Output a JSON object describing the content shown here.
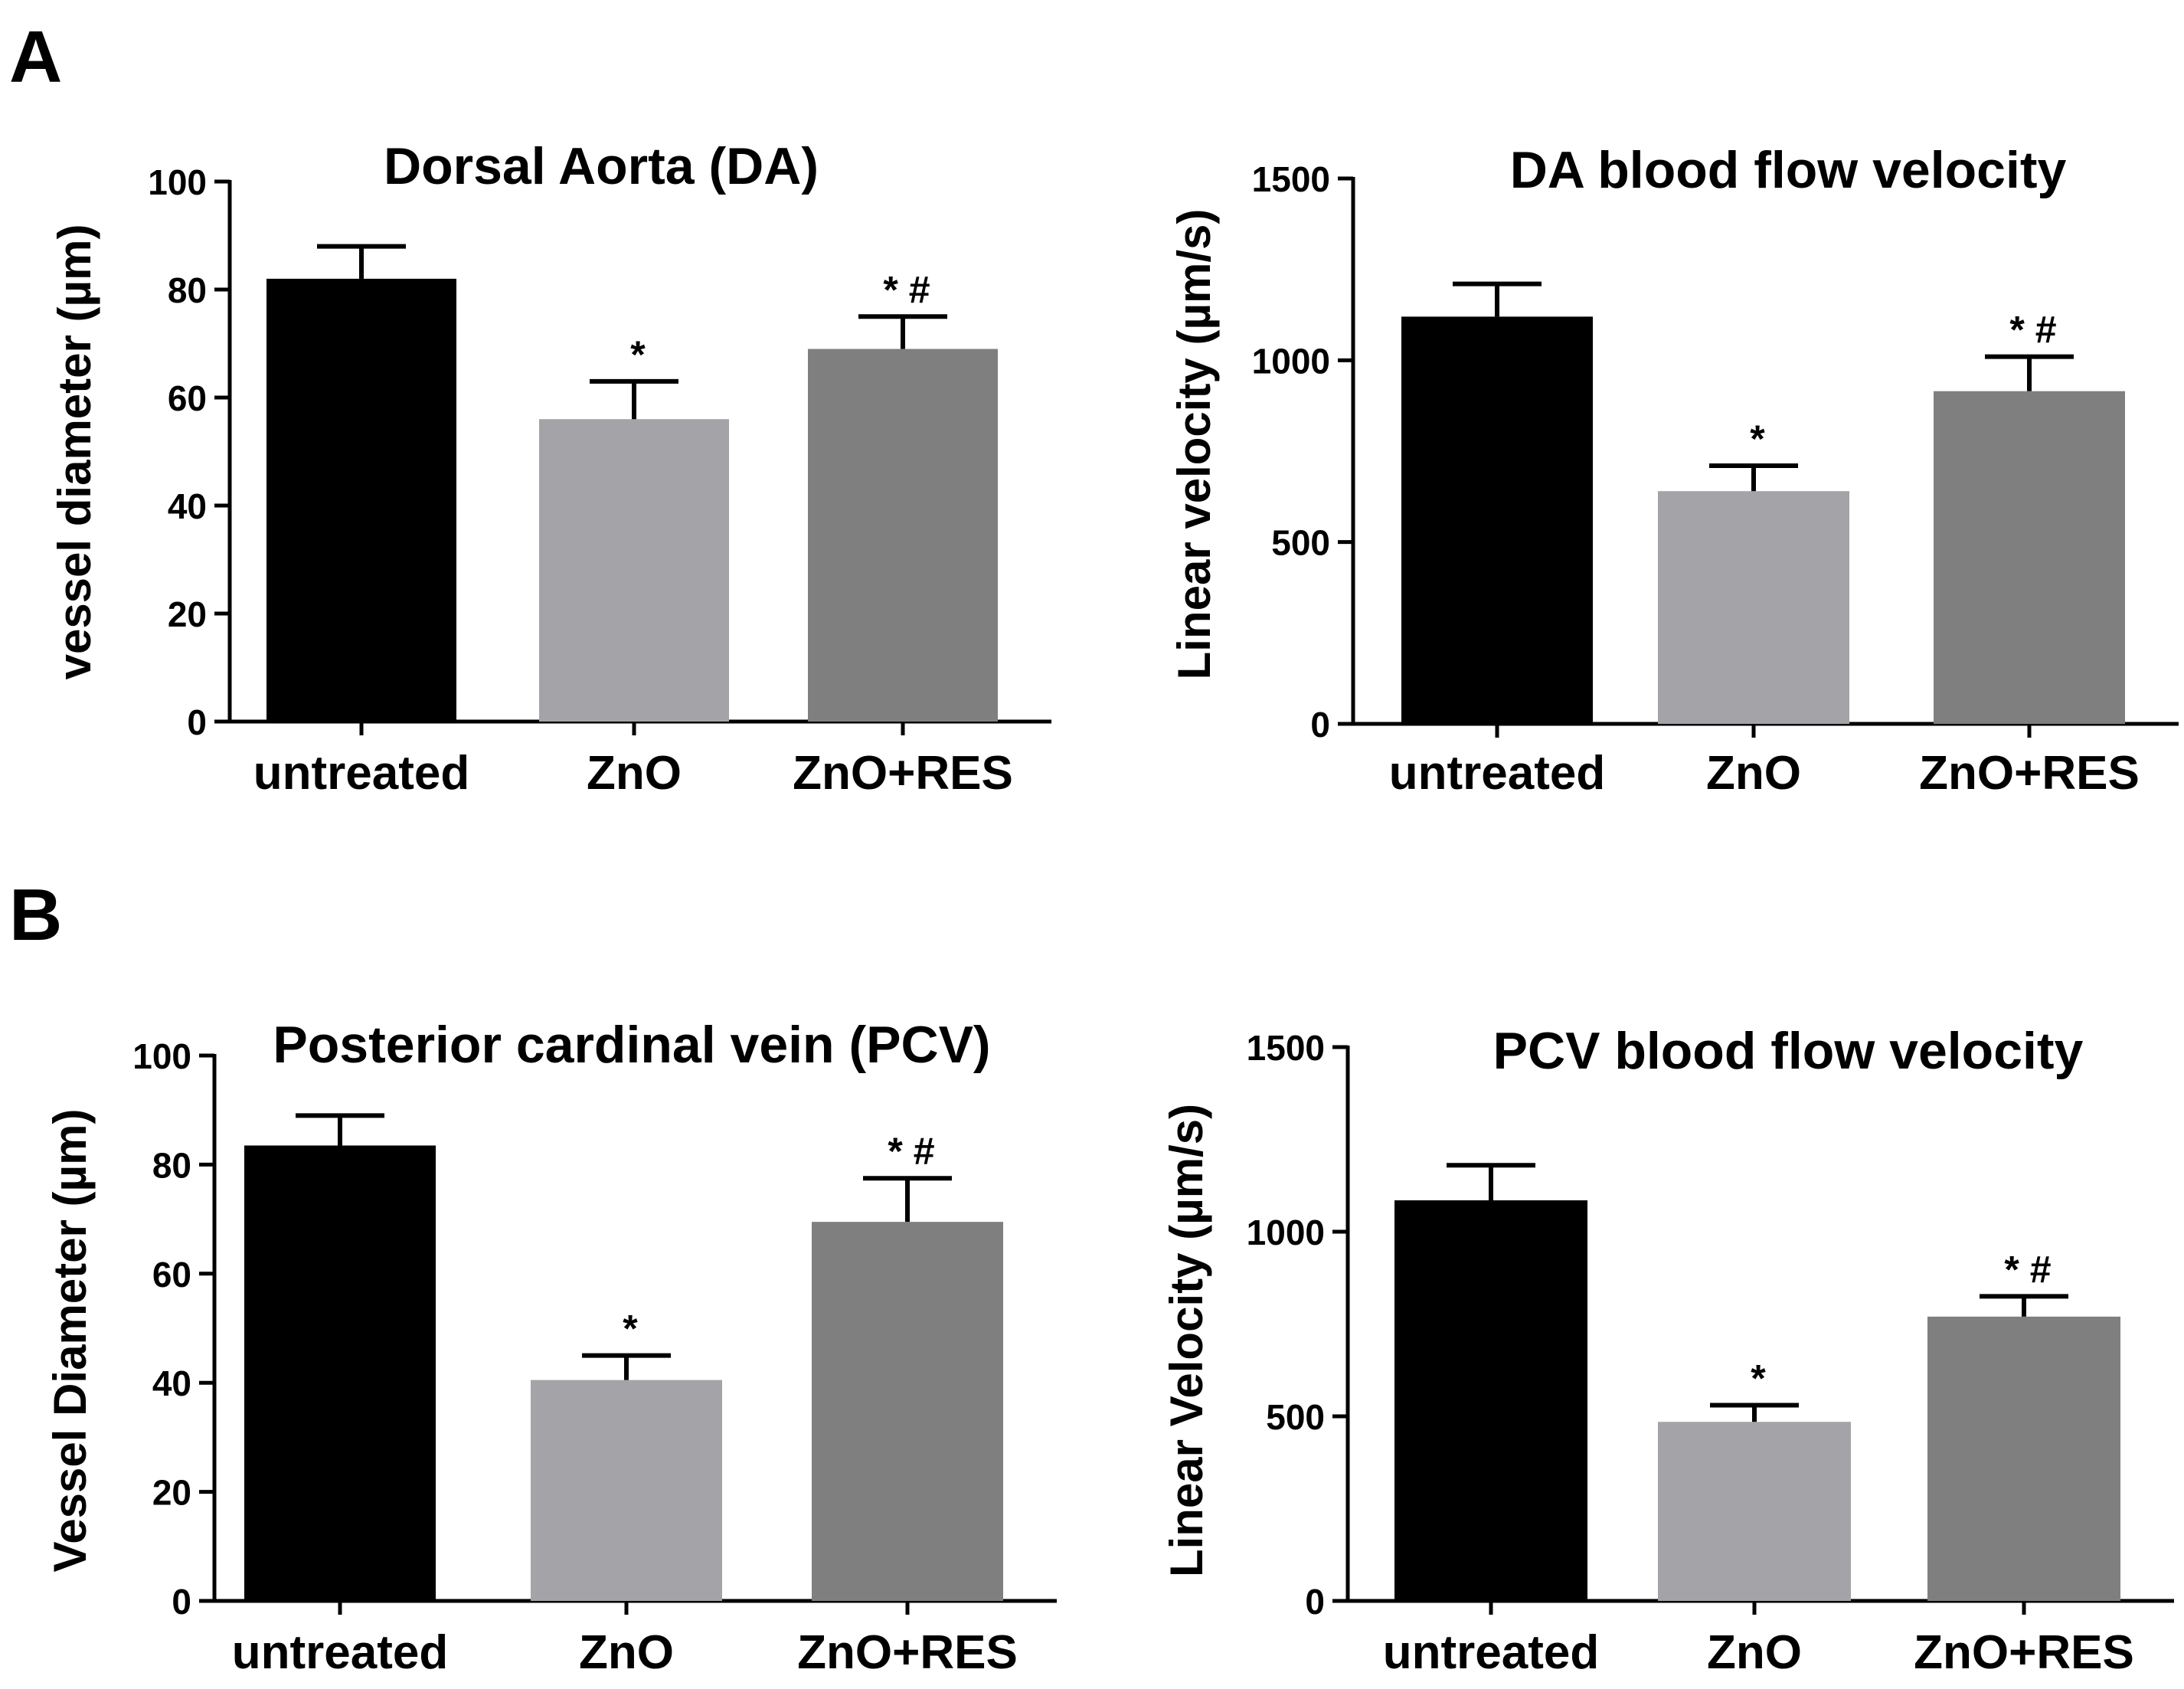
{
  "panels": [
    {
      "label": "A"
    },
    {
      "label": "B"
    }
  ],
  "colors": {
    "untreated": "#000000",
    "ZnO": "#a4a4a8",
    "ZnO+RES": "#7f7f7f",
    "axis": "#000000"
  },
  "chart_data": [
    {
      "id": "da-diameter",
      "panel": "A",
      "type": "bar",
      "title": "Dorsal Aorta (DA)",
      "xlabel": "",
      "ylabel": "vessel diameter (µm)",
      "categories": [
        "untreated",
        "ZnO",
        "ZnO+RES"
      ],
      "values": [
        82,
        56,
        69
      ],
      "errors": [
        6,
        7,
        6
      ],
      "annotations": [
        "",
        "*",
        "* #"
      ],
      "ylim": [
        0,
        100
      ],
      "yticks": [
        0,
        20,
        40,
        60,
        80,
        100
      ],
      "ytick_labels": [
        "0",
        "20",
        "40",
        "60",
        "80",
        "100"
      ]
    },
    {
      "id": "da-velocity",
      "panel": "A",
      "type": "bar",
      "title": "DA blood flow velocity",
      "xlabel": "",
      "ylabel": "Linear velocity (µm/s)",
      "categories": [
        "untreated",
        "ZnO",
        "ZnO+RES"
      ],
      "values": [
        1120,
        640,
        915
      ],
      "errors": [
        90,
        70,
        95
      ],
      "annotations": [
        "",
        "*",
        "* #"
      ],
      "ylim": [
        0,
        1500
      ],
      "yticks": [
        0,
        500,
        1000,
        1500
      ],
      "ytick_labels": [
        "0",
        "500",
        "1000",
        "1500"
      ]
    },
    {
      "id": "pcv-diameter",
      "panel": "B",
      "type": "bar",
      "title": "Posterior cardinal vein (PCV)",
      "xlabel": "",
      "ylabel": "Vessel Diameter (µm)",
      "categories": [
        "untreated",
        "ZnO",
        "ZnO+RES"
      ],
      "values": [
        83.5,
        40.5,
        69.5
      ],
      "errors": [
        5.5,
        4.5,
        8
      ],
      "annotations": [
        "",
        "*",
        "* #"
      ],
      "ylim": [
        0,
        100
      ],
      "yticks": [
        0,
        20,
        40,
        60,
        80,
        100
      ],
      "ytick_labels": [
        "0",
        "20",
        "40",
        "60",
        "80",
        "100"
      ]
    },
    {
      "id": "pcv-velocity",
      "panel": "B",
      "type": "bar",
      "title": "PCV blood flow velocity",
      "xlabel": "",
      "ylabel": "Linear Velocity (µm/s)",
      "categories": [
        "untreated",
        "ZnO",
        "ZnO+RES"
      ],
      "values": [
        1085,
        485,
        770
      ],
      "errors": [
        95,
        45,
        55
      ],
      "annotations": [
        "",
        "*",
        "* #"
      ],
      "ylim": [
        0,
        1500
      ],
      "yticks": [
        0,
        500,
        1000,
        1500
      ],
      "ytick_labels": [
        "0",
        "500",
        "1000",
        "1500"
      ]
    }
  ]
}
